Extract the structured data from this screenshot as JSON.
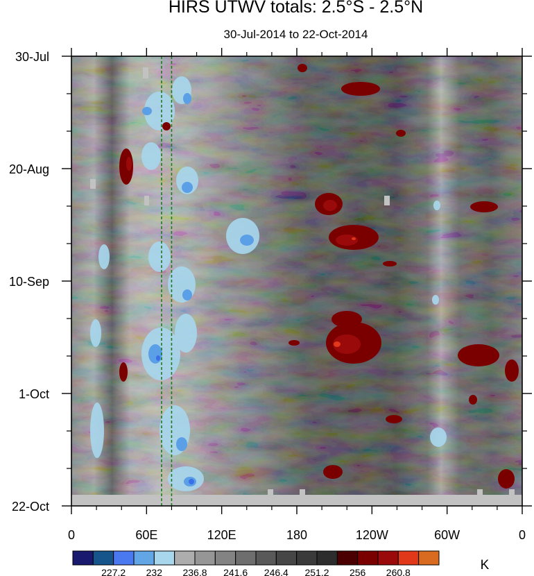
{
  "chart_data": {
    "type": "heatmap",
    "title": "HIRS UTWV totals: 2.5°S - 2.5°N",
    "subtitle": "30-Jul-2014 to 22-Oct-2014",
    "x_ticks": [
      "0",
      "60E",
      "120E",
      "180",
      "120W",
      "60W",
      "0"
    ],
    "x_range": [
      0,
      360
    ],
    "y_ticks": [
      "30-Jul",
      "20-Aug",
      "10-Sep",
      "1-Oct",
      "22-Oct"
    ],
    "y_range": [
      "2014-07-30",
      "2014-10-22"
    ],
    "reference_lines_lon": [
      72,
      80
    ],
    "colorbar": {
      "unit": "K",
      "labels": [
        "227.2",
        "232",
        "236.8",
        "241.6",
        "246.4",
        "251.2",
        "256",
        "260.8"
      ],
      "colors": [
        "#191970",
        "#16548c",
        "#4a78ee",
        "#62a6e6",
        "#a8d6ec",
        "#adadad",
        "#969696",
        "#838383",
        "#6e6e6e",
        "#595959",
        "#464646",
        "#3a3a3a",
        "#2d2d2d",
        "#4a0000",
        "#7a0000",
        "#9a0a0a",
        "#e03818",
        "#d86b20"
      ]
    }
  }
}
